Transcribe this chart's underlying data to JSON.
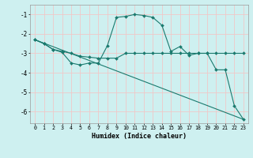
{
  "xlabel": "Humidex (Indice chaleur)",
  "background_color": "#cef0f0",
  "grid_color": "#f0c8c8",
  "line_color": "#1a7a6e",
  "xlim": [
    -0.5,
    23.5
  ],
  "ylim": [
    -6.6,
    -0.5
  ],
  "xticks": [
    0,
    1,
    2,
    3,
    4,
    5,
    6,
    7,
    8,
    9,
    10,
    11,
    12,
    13,
    14,
    15,
    16,
    17,
    18,
    19,
    20,
    21,
    22,
    23
  ],
  "yticks": [
    -6,
    -5,
    -4,
    -3,
    -2,
    -1
  ],
  "line1_x": [
    0,
    1,
    2,
    3,
    4,
    5,
    6,
    7,
    8,
    9,
    10,
    11,
    12,
    13,
    14,
    15,
    16,
    17,
    18,
    19,
    20,
    21,
    22,
    23
  ],
  "line1_y": [
    -2.3,
    -2.5,
    -2.8,
    -2.95,
    -3.5,
    -3.6,
    -3.5,
    -3.5,
    -2.6,
    -1.15,
    -1.1,
    -1.0,
    -1.05,
    -1.15,
    -1.55,
    -2.9,
    -2.65,
    -3.1,
    -3.0,
    -3.0,
    -3.85,
    -3.85,
    -5.7,
    -6.4
  ],
  "line2_x": [
    0,
    1,
    2,
    3,
    4,
    5,
    6,
    7,
    8,
    9,
    10,
    11,
    12,
    13,
    14,
    15,
    16,
    17,
    18,
    19,
    20,
    21,
    22,
    23
  ],
  "line2_y": [
    -2.3,
    -2.5,
    -2.8,
    -2.9,
    -3.0,
    -3.15,
    -3.2,
    -3.25,
    -3.25,
    -3.25,
    -3.0,
    -3.0,
    -3.0,
    -3.0,
    -3.0,
    -3.0,
    -3.0,
    -3.0,
    -3.0,
    -3.0,
    -3.0,
    -3.0,
    -3.0,
    -3.0
  ],
  "line3_x": [
    0,
    23
  ],
  "line3_y": [
    -2.3,
    -6.4
  ]
}
